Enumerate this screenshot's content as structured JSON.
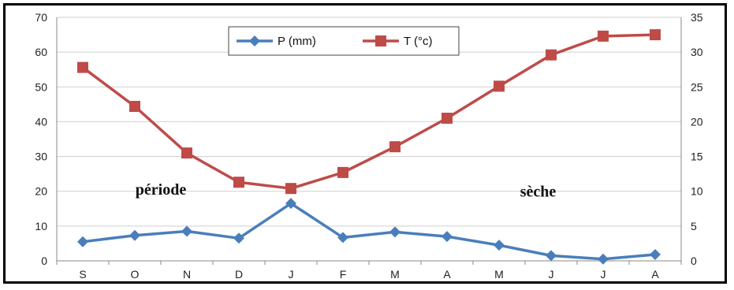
{
  "chart_data": {
    "type": "line",
    "categories": [
      "S",
      "O",
      "N",
      "D",
      "J",
      "F",
      "M",
      "A",
      "M",
      "J",
      "J",
      "A"
    ],
    "series": [
      {
        "name": "P (mm)",
        "axis": "left",
        "color": "#4a7ebb",
        "marker": "diamond",
        "values": [
          5.5,
          7.3,
          8.5,
          6.5,
          16.5,
          6.7,
          8.3,
          7.0,
          4.5,
          1.5,
          0.5,
          1.8
        ]
      },
      {
        "name": "T (°c)",
        "axis": "right",
        "color": "#be4b48",
        "marker": "square",
        "values": [
          27.8,
          22.2,
          15.5,
          11.3,
          10.4,
          12.7,
          16.4,
          20.5,
          25.1,
          29.6,
          32.3,
          32.5
        ]
      }
    ],
    "y_left": {
      "min": 0,
      "max": 70,
      "step": 10
    },
    "y_right": {
      "min": 0,
      "max": 35,
      "step": 5
    },
    "grid": "horizontal",
    "legend": "top-center",
    "annotations": [
      {
        "text": "période",
        "x_index": 1.5,
        "y_left": 19
      },
      {
        "text": "sèche",
        "x_index": 8.75,
        "y_left": 18.5
      }
    ]
  }
}
